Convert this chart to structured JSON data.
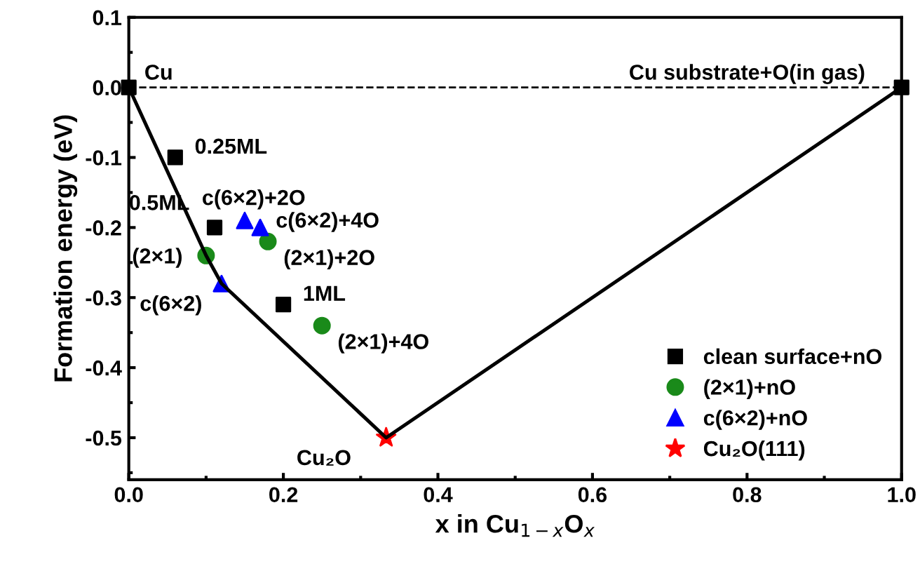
{
  "chart_data": {
    "type": "scatter",
    "xlabel": "x in Cu$_{1−x}$O$_{x}$",
    "ylabel": "Formation energy (eV)",
    "xlim": [
      0,
      1.0
    ],
    "xticks": [
      {
        "value": 0,
        "label": "0.0"
      },
      {
        "value": 0.2,
        "label": "0.2"
      },
      {
        "value": 0.4,
        "label": "0.4"
      },
      {
        "value": 0.6,
        "label": "0.6"
      },
      {
        "value": 0.8,
        "label": "0.8"
      },
      {
        "value": 1.0,
        "label": "1.0"
      }
    ],
    "ylim": [
      -0.56,
      0.1
    ],
    "yticks": [
      {
        "value": 0.1,
        "label": "0.1"
      },
      {
        "value": 0,
        "label": "0.0"
      },
      {
        "value": -0.1,
        "label": "-0.1"
      },
      {
        "value": -0.2,
        "label": "-0.2"
      },
      {
        "value": -0.3,
        "label": "-0.3"
      },
      {
        "value": -0.4,
        "label": "-0.4"
      },
      {
        "value": -0.5,
        "label": "-0.5"
      }
    ],
    "grid": false,
    "legend": "bottom right",
    "ref_lines": [
      {
        "axis": "y",
        "value": 0,
        "color": "#000000",
        "line_style": "dashed"
      }
    ],
    "series": [
      {
        "type": "line",
        "color": "#000000",
        "marker": "none",
        "line_style": "solid",
        "x": [
          0,
          0.1,
          0.12,
          0.333,
          1.0
        ],
        "values": [
          0,
          -0.24,
          -0.28,
          -0.5,
          0
        ]
      },
      {
        "name": "clean surface+nO",
        "color": "#000000",
        "marker": "square",
        "x": [
          0,
          0.06,
          0.111,
          0.2,
          1.0
        ],
        "values": [
          0,
          -0.1,
          -0.2,
          -0.31,
          0
        ]
      },
      {
        "name": "(2×1)+nO",
        "color": "#1a8a1a",
        "marker": "circle",
        "x": [
          0.1,
          0.18,
          0.25
        ],
        "values": [
          -0.24,
          -0.22,
          -0.34
        ]
      },
      {
        "name": "c(6×2)+nO",
        "color": "#0000ff",
        "marker": "triangle",
        "x": [
          0.12,
          0.15,
          0.17
        ],
        "values": [
          -0.28,
          -0.19,
          -0.2
        ]
      },
      {
        "name": "Cu₂O(111)",
        "color": "#ff0000",
        "marker": "star",
        "x": [
          0.333
        ],
        "values": [
          -0.5
        ]
      }
    ],
    "annotations": [
      {
        "text": "Cu",
        "x": 0,
        "y": 0
      },
      {
        "text": "Cu substrate+O(in gas)",
        "x": 1.0,
        "y": 0
      },
      {
        "text": "0.25ML",
        "x": 0.06,
        "y": -0.1
      },
      {
        "text": "0.5ML",
        "x": 0.111,
        "y": -0.2
      },
      {
        "text": "1ML",
        "x": 0.2,
        "y": -0.31
      },
      {
        "text": "(2×1)",
        "x": 0.1,
        "y": -0.24
      },
      {
        "text": "(2×1)+2O",
        "x": 0.18,
        "y": -0.22
      },
      {
        "text": "(2×1)+4O",
        "x": 0.25,
        "y": -0.34
      },
      {
        "text": "c(6×2)",
        "x": 0.12,
        "y": -0.28
      },
      {
        "text": "c(6×2)+2O",
        "x": 0.15,
        "y": -0.19
      },
      {
        "text": "c(6×2)+4O",
        "x": 0.17,
        "y": -0.2
      },
      {
        "text": "Cu₂O",
        "x": 0.333,
        "y": -0.5
      }
    ]
  }
}
